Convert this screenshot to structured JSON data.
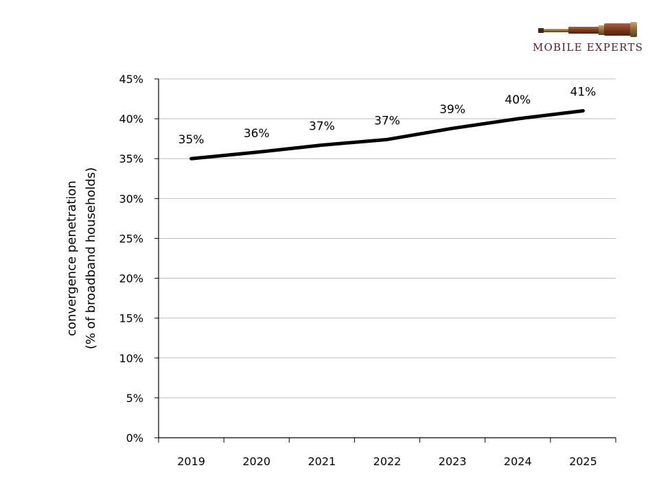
{
  "logo": {
    "text": "MOBILE EXPERTS",
    "icon": "telescope-icon",
    "color": "#5a1a2a"
  },
  "chart_data": {
    "type": "line",
    "title": "",
    "ylabel_line1": "convergence penetration",
    "ylabel_line2": "(% of broadband households)",
    "xlabel": "",
    "categories": [
      "2019",
      "2020",
      "2021",
      "2022",
      "2023",
      "2024",
      "2025"
    ],
    "series": [
      {
        "values": [
          35,
          35.8,
          36.7,
          37.4,
          38.8,
          40.0,
          41.0
        ],
        "labels": [
          "35%",
          "36%",
          "37%",
          "37%",
          "39%",
          "40%",
          "41%"
        ],
        "color": "#000000"
      }
    ],
    "ylim": [
      0,
      45
    ],
    "yticks": [
      0,
      5,
      10,
      15,
      20,
      25,
      30,
      35,
      40,
      45
    ],
    "ytick_suffix": "%",
    "grid": true,
    "legend": "none"
  }
}
